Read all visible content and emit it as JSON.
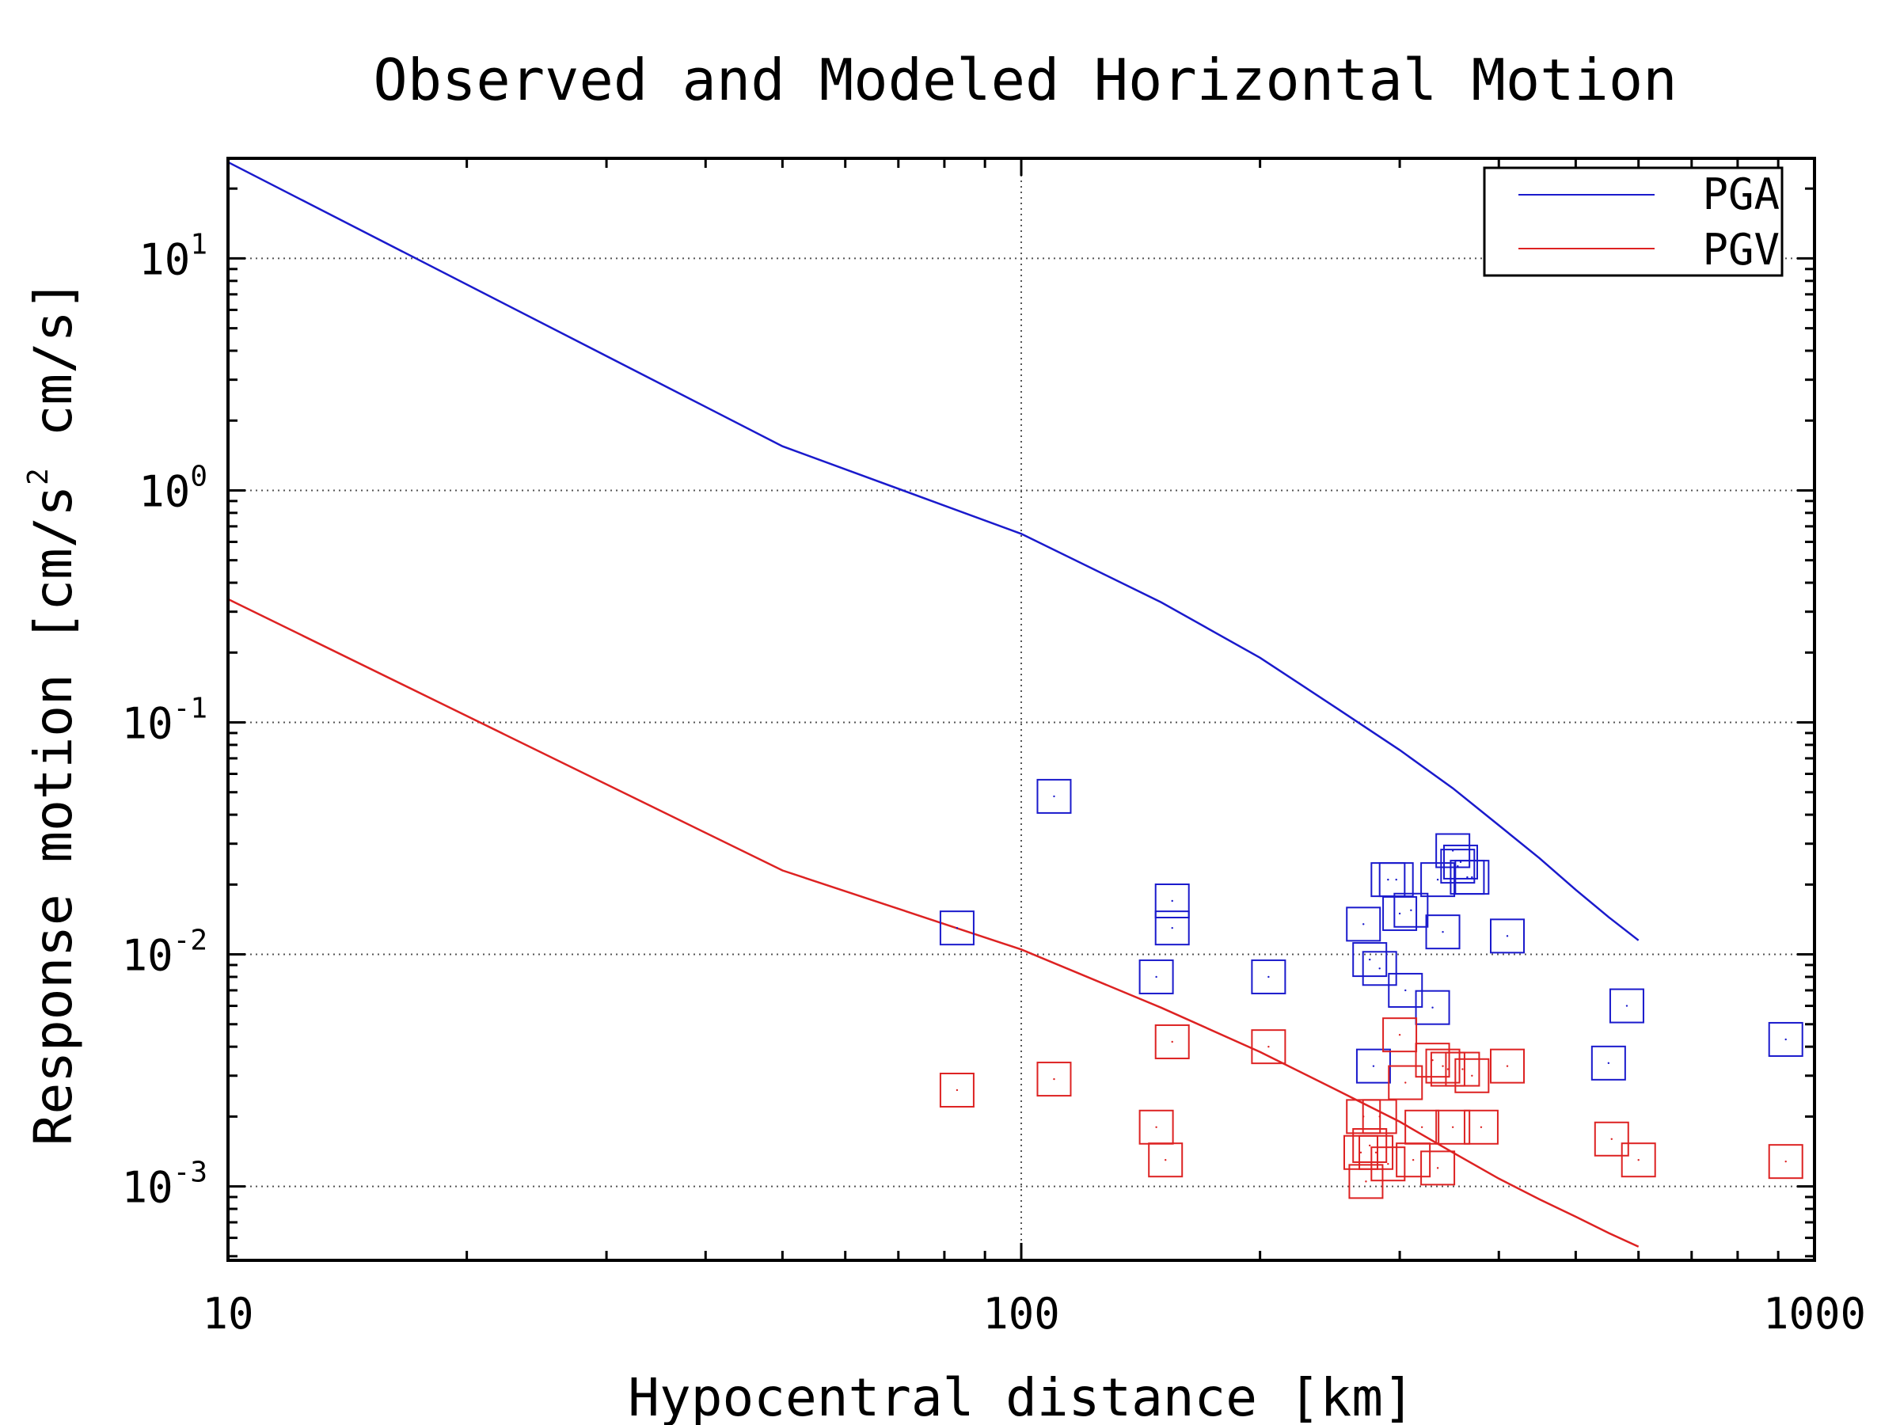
{
  "chart_data": {
    "type": "scatter",
    "title": "Observed and Modeled Horizontal Motion",
    "xlabel": "Hypocentral distance [km]",
    "ylabel_parts": {
      "main": "Response motion  [cm/s",
      "sup": "2",
      "tail": "  cm/s]"
    },
    "x_scale": "log",
    "y_scale": "log",
    "xlim": [
      10,
      1000
    ],
    "ylim": [
      0.00048,
      27
    ],
    "x_ticks": [
      {
        "value": 10,
        "label": "10"
      },
      {
        "value": 100,
        "label": "100"
      },
      {
        "value": 1000,
        "label": "1000"
      }
    ],
    "y_ticks": [
      {
        "value": 0.001,
        "base": "10",
        "exp": "-3"
      },
      {
        "value": 0.01,
        "base": "10",
        "exp": "-2"
      },
      {
        "value": 0.1,
        "base": "10",
        "exp": "-1"
      },
      {
        "value": 1,
        "base": "10",
        "exp": "0"
      },
      {
        "value": 10,
        "base": "10",
        "exp": "1"
      }
    ],
    "grid": "dotted",
    "legend_position": "top-right",
    "series": [
      {
        "name": "PGA",
        "color": "#1a1acc",
        "curve_x": [
          10,
          50,
          100,
          150,
          200,
          250,
          300,
          350,
          400,
          450,
          500,
          550,
          600
        ],
        "curve_y": [
          26,
          1.55,
          0.65,
          0.33,
          0.19,
          0.115,
          0.076,
          0.052,
          0.036,
          0.026,
          0.019,
          0.0145,
          0.0115
        ],
        "points_x": [
          83,
          110,
          148,
          155,
          155,
          205,
          270,
          275,
          278,
          283,
          290,
          297,
          300,
          305,
          310,
          330,
          335,
          340,
          350,
          355,
          358,
          365,
          370,
          410,
          550,
          580,
          920
        ],
        "points_y": [
          0.013,
          0.048,
          0.008,
          0.013,
          0.017,
          0.008,
          0.0135,
          0.0095,
          0.0033,
          0.0087,
          0.021,
          0.021,
          0.015,
          0.007,
          0.0155,
          0.0059,
          0.021,
          0.0125,
          0.028,
          0.024,
          0.025,
          0.0215,
          0.0215,
          0.012,
          0.0034,
          0.006,
          0.0043
        ]
      },
      {
        "name": "PGV",
        "color": "#dd2222",
        "curve_x": [
          10,
          50,
          100,
          150,
          200,
          250,
          300,
          350,
          400,
          450,
          500,
          550,
          600
        ],
        "curve_y": [
          0.34,
          0.023,
          0.0105,
          0.0059,
          0.0038,
          0.0026,
          0.0019,
          0.0014,
          0.00108,
          0.00088,
          0.00074,
          0.00063,
          0.00055
        ],
        "points_x": [
          83,
          110,
          148,
          152,
          155,
          205,
          268,
          270,
          272,
          275,
          280,
          283,
          290,
          300,
          305,
          312,
          320,
          330,
          335,
          340,
          345,
          350,
          360,
          370,
          380,
          410,
          555,
          600,
          920
        ],
        "points_y": [
          0.0026,
          0.0029,
          0.0018,
          0.0013,
          0.0042,
          0.004,
          0.0014,
          0.002,
          0.00105,
          0.0015,
          0.0014,
          0.002,
          0.00125,
          0.0045,
          0.0028,
          0.0013,
          0.0018,
          0.0035,
          0.0012,
          0.0033,
          0.0032,
          0.0018,
          0.0032,
          0.003,
          0.0018,
          0.0033,
          0.0016,
          0.0013,
          0.00128
        ]
      }
    ]
  }
}
